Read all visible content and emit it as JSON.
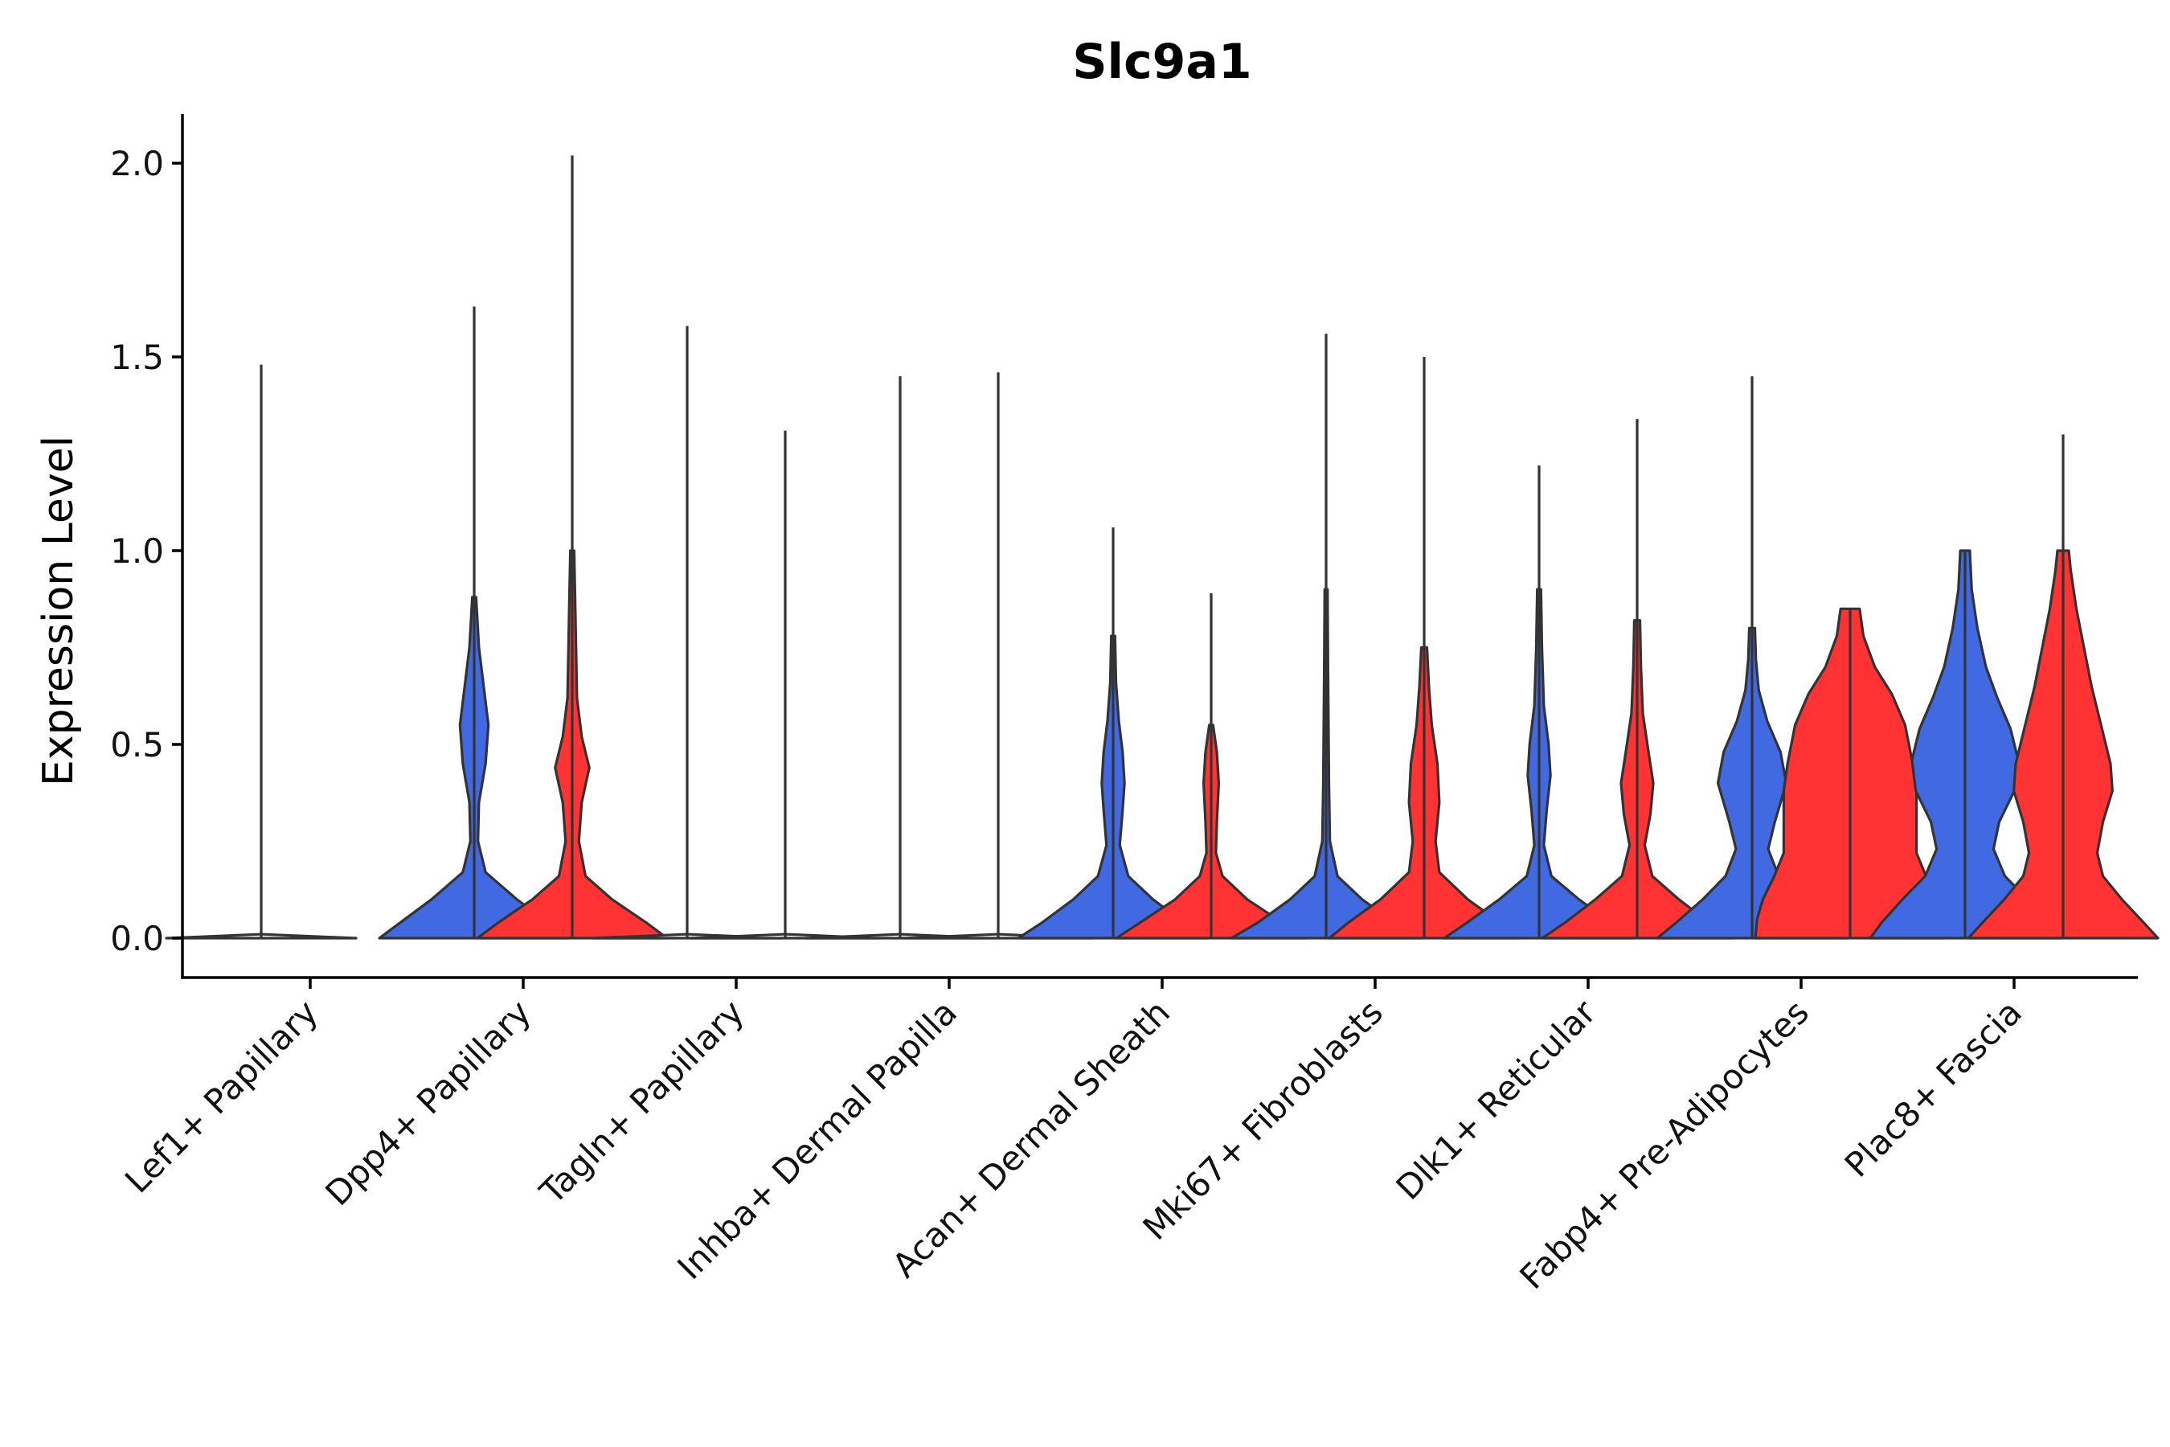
{
  "chart_data": {
    "type": "violin",
    "title": "Slc9a1",
    "xlabel": "",
    "ylabel": "Expression Level",
    "ylim": [
      -0.1,
      2.1
    ],
    "yticks": [
      0.0,
      0.5,
      1.0,
      1.5,
      2.0
    ],
    "ytick_labels": [
      "0.0",
      "0.5",
      "1.0",
      "1.5",
      "2.0"
    ],
    "series_colors": {
      "group1": "#4169e1",
      "group2": "#ff3333",
      "none": "#ffffff"
    },
    "categories": [
      "Lef1+ Papillary",
      "Dpp4+ Papillary",
      "Tagln+ Papillary",
      "Inhba+ Dermal Papilla",
      "Acan+ Dermal Sheath",
      "Mki67+ Fibroblasts",
      "Dlk1+ Reticular",
      "Fabp4+ Pre-Adipocytes",
      "Plac8+ Fascia"
    ],
    "violins": [
      {
        "category": "Lef1+ Papillary",
        "group": "none",
        "max": 0.0,
        "line_max": 1.48,
        "shape": [
          [
            0,
            1
          ],
          [
            0.005,
            0.5
          ],
          [
            0.01,
            0.02
          ]
        ]
      },
      {
        "category": "Dpp4+ Papillary",
        "group": "group1",
        "max": 0.88,
        "line_max": 1.63,
        "shape": [
          [
            0,
            1
          ],
          [
            0.04,
            0.78
          ],
          [
            0.1,
            0.45
          ],
          [
            0.17,
            0.12
          ],
          [
            0.25,
            0.04
          ],
          [
            0.35,
            0.05
          ],
          [
            0.45,
            0.12
          ],
          [
            0.55,
            0.15
          ],
          [
            0.65,
            0.1
          ],
          [
            0.75,
            0.05
          ],
          [
            0.88,
            0.02
          ]
        ]
      },
      {
        "category": "Dpp4+ Papillary",
        "group": "group2",
        "max": 1.0,
        "line_max": 2.02,
        "shape": [
          [
            0,
            1
          ],
          [
            0.04,
            0.78
          ],
          [
            0.1,
            0.42
          ],
          [
            0.16,
            0.14
          ],
          [
            0.25,
            0.07
          ],
          [
            0.35,
            0.1
          ],
          [
            0.44,
            0.18
          ],
          [
            0.52,
            0.1
          ],
          [
            0.62,
            0.05
          ],
          [
            0.75,
            0.04
          ],
          [
            0.88,
            0.03
          ],
          [
            1.0,
            0.02
          ]
        ]
      },
      {
        "category": "Tagln+ Papillary",
        "group": "none",
        "max": 0.0,
        "line_max": 1.58,
        "shape": [
          [
            0,
            1
          ],
          [
            0.005,
            0.5
          ],
          [
            0.01,
            0.02
          ]
        ]
      },
      {
        "category": "Tagln+ Papillary",
        "group": "none",
        "max": 0.0,
        "line_max": 1.31,
        "shape": [
          [
            0,
            1
          ],
          [
            0.005,
            0.5
          ],
          [
            0.01,
            0.02
          ]
        ]
      },
      {
        "category": "Inhba+ Dermal Papilla",
        "group": "none",
        "max": 0.0,
        "line_max": 1.45,
        "shape": [
          [
            0,
            1
          ],
          [
            0.005,
            0.5
          ],
          [
            0.01,
            0.02
          ]
        ]
      },
      {
        "category": "Inhba+ Dermal Papilla",
        "group": "none",
        "max": 0.0,
        "line_max": 1.46,
        "shape": [
          [
            0,
            1
          ],
          [
            0.005,
            0.5
          ],
          [
            0.01,
            0.02
          ]
        ]
      },
      {
        "category": "Acan+ Dermal Sheath",
        "group": "group1",
        "max": 0.78,
        "line_max": 1.06,
        "shape": [
          [
            0,
            1
          ],
          [
            0.04,
            0.75
          ],
          [
            0.1,
            0.42
          ],
          [
            0.16,
            0.16
          ],
          [
            0.24,
            0.07
          ],
          [
            0.33,
            0.1
          ],
          [
            0.4,
            0.12
          ],
          [
            0.48,
            0.1
          ],
          [
            0.56,
            0.06
          ],
          [
            0.66,
            0.03
          ],
          [
            0.78,
            0.02
          ]
        ]
      },
      {
        "category": "Acan+ Dermal Sheath",
        "group": "group2",
        "max": 0.55,
        "line_max": 0.89,
        "shape": [
          [
            0,
            1
          ],
          [
            0.04,
            0.75
          ],
          [
            0.1,
            0.38
          ],
          [
            0.16,
            0.12
          ],
          [
            0.22,
            0.05
          ],
          [
            0.3,
            0.06
          ],
          [
            0.4,
            0.08
          ],
          [
            0.48,
            0.06
          ],
          [
            0.55,
            0.02
          ]
        ]
      },
      {
        "category": "Mki67+ Fibroblasts",
        "group": "group1",
        "max": 0.9,
        "line_max": 1.56,
        "shape": [
          [
            0,
            1
          ],
          [
            0.04,
            0.72
          ],
          [
            0.1,
            0.38
          ],
          [
            0.16,
            0.12
          ],
          [
            0.25,
            0.04
          ],
          [
            0.4,
            0.03
          ],
          [
            0.55,
            0.025
          ],
          [
            0.7,
            0.02
          ],
          [
            0.9,
            0.015
          ]
        ]
      },
      {
        "category": "Mki67+ Fibroblasts",
        "group": "group2",
        "max": 0.75,
        "line_max": 1.5,
        "shape": [
          [
            0,
            1
          ],
          [
            0.04,
            0.8
          ],
          [
            0.1,
            0.46
          ],
          [
            0.17,
            0.16
          ],
          [
            0.25,
            0.12
          ],
          [
            0.35,
            0.16
          ],
          [
            0.45,
            0.14
          ],
          [
            0.55,
            0.08
          ],
          [
            0.65,
            0.05
          ],
          [
            0.75,
            0.03
          ]
        ]
      },
      {
        "category": "Dlk1+ Reticular",
        "group": "group1",
        "max": 0.9,
        "line_max": 1.22,
        "shape": [
          [
            0,
            1
          ],
          [
            0.04,
            0.76
          ],
          [
            0.1,
            0.42
          ],
          [
            0.16,
            0.13
          ],
          [
            0.24,
            0.05
          ],
          [
            0.33,
            0.08
          ],
          [
            0.42,
            0.12
          ],
          [
            0.5,
            0.1
          ],
          [
            0.6,
            0.05
          ],
          [
            0.75,
            0.03
          ],
          [
            0.9,
            0.02
          ]
        ]
      },
      {
        "category": "Dlk1+ Reticular",
        "group": "group2",
        "max": 0.82,
        "line_max": 1.34,
        "shape": [
          [
            0,
            1
          ],
          [
            0.04,
            0.76
          ],
          [
            0.1,
            0.44
          ],
          [
            0.16,
            0.16
          ],
          [
            0.24,
            0.08
          ],
          [
            0.32,
            0.14
          ],
          [
            0.4,
            0.17
          ],
          [
            0.48,
            0.12
          ],
          [
            0.58,
            0.06
          ],
          [
            0.7,
            0.04
          ],
          [
            0.82,
            0.03
          ]
        ]
      },
      {
        "category": "Fabp4+ Pre-Adipocytes",
        "group": "group1",
        "max": 0.8,
        "line_max": 1.45,
        "shape": [
          [
            0,
            1
          ],
          [
            0.04,
            0.8
          ],
          [
            0.1,
            0.52
          ],
          [
            0.16,
            0.28
          ],
          [
            0.23,
            0.17
          ],
          [
            0.3,
            0.24
          ],
          [
            0.4,
            0.36
          ],
          [
            0.48,
            0.3
          ],
          [
            0.56,
            0.16
          ],
          [
            0.64,
            0.07
          ],
          [
            0.72,
            0.04
          ],
          [
            0.8,
            0.03
          ]
        ]
      },
      {
        "category": "Fabp4+ Pre-Adipocytes",
        "group": "group2",
        "max": 0.85,
        "line_max": 0.85,
        "shape": [
          [
            0,
            1
          ],
          [
            0.05,
            0.98
          ],
          [
            0.1,
            0.92
          ],
          [
            0.16,
            0.8
          ],
          [
            0.22,
            0.7
          ],
          [
            0.3,
            0.7
          ],
          [
            0.38,
            0.7
          ],
          [
            0.45,
            0.66
          ],
          [
            0.55,
            0.58
          ],
          [
            0.63,
            0.44
          ],
          [
            0.7,
            0.26
          ],
          [
            0.78,
            0.14
          ],
          [
            0.85,
            0.1
          ]
        ]
      },
      {
        "category": "Plac8+ Fascia",
        "group": "group1",
        "max": 1.0,
        "line_max": 1.0,
        "shape": [
          [
            0,
            1
          ],
          [
            0.04,
            0.88
          ],
          [
            0.1,
            0.66
          ],
          [
            0.16,
            0.42
          ],
          [
            0.23,
            0.3
          ],
          [
            0.3,
            0.36
          ],
          [
            0.38,
            0.52
          ],
          [
            0.46,
            0.56
          ],
          [
            0.54,
            0.48
          ],
          [
            0.62,
            0.34
          ],
          [
            0.7,
            0.22
          ],
          [
            0.8,
            0.13
          ],
          [
            0.9,
            0.07
          ],
          [
            1.0,
            0.05
          ]
        ]
      },
      {
        "category": "Plac8+ Fascia",
        "group": "group2",
        "max": 1.0,
        "line_max": 1.3,
        "shape": [
          [
            0,
            1
          ],
          [
            0.04,
            0.85
          ],
          [
            0.1,
            0.62
          ],
          [
            0.16,
            0.42
          ],
          [
            0.22,
            0.36
          ],
          [
            0.3,
            0.42
          ],
          [
            0.38,
            0.52
          ],
          [
            0.45,
            0.5
          ],
          [
            0.55,
            0.4
          ],
          [
            0.65,
            0.3
          ],
          [
            0.75,
            0.22
          ],
          [
            0.85,
            0.14
          ],
          [
            0.95,
            0.08
          ],
          [
            1.0,
            0.06
          ]
        ]
      }
    ]
  }
}
